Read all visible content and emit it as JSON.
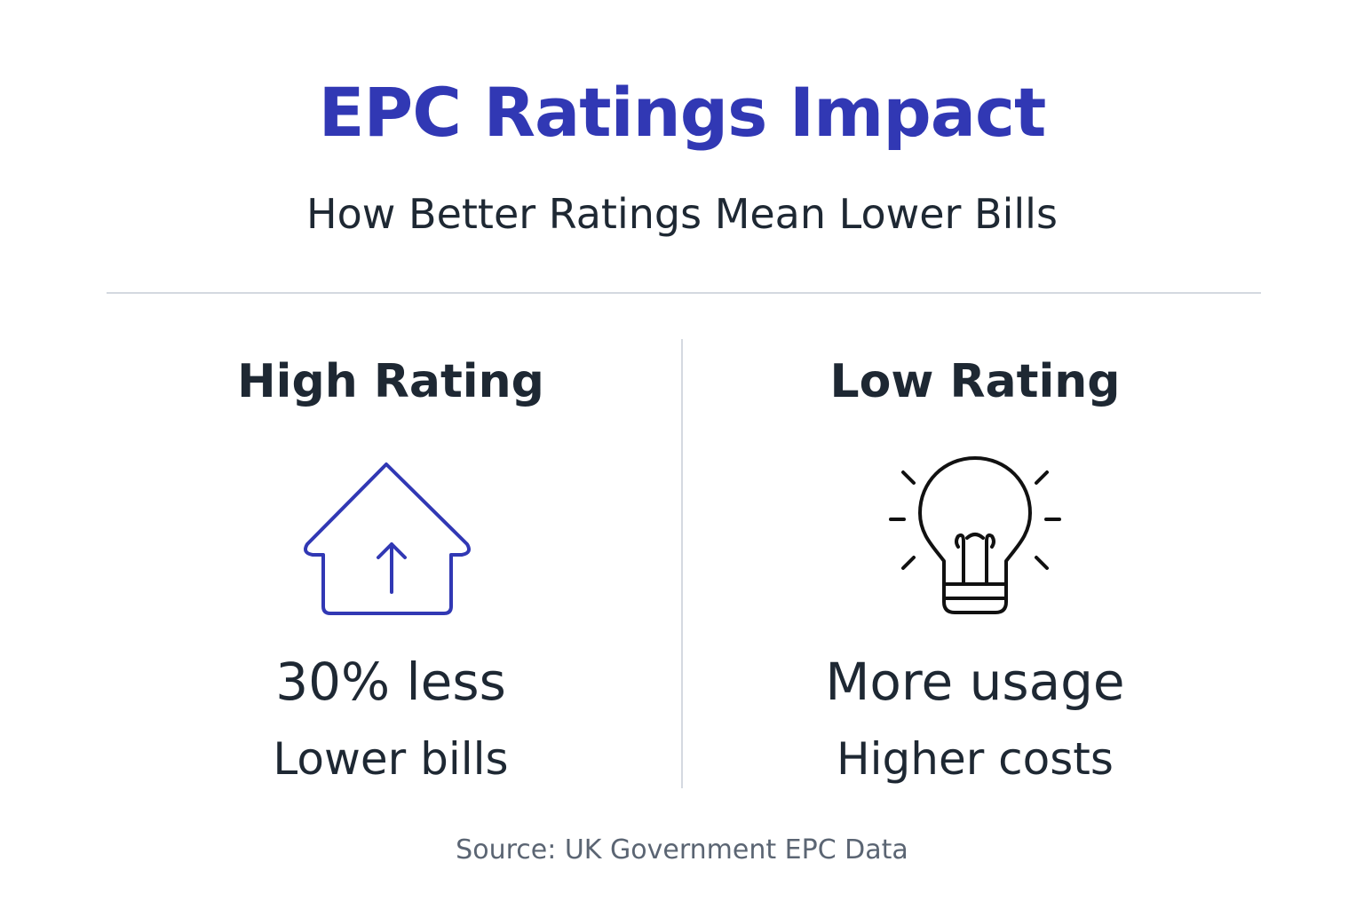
{
  "header": {
    "title": "EPC Ratings Impact",
    "subtitle": "How Better Ratings Mean Lower Bills"
  },
  "columns": [
    {
      "heading": "High Rating",
      "stat": "30% less",
      "caption": "Lower bills"
    },
    {
      "heading": "Low Rating",
      "stat": "More usage",
      "caption": "Higher costs"
    }
  ],
  "footer": {
    "source": "Source: UK Government EPC Data"
  }
}
